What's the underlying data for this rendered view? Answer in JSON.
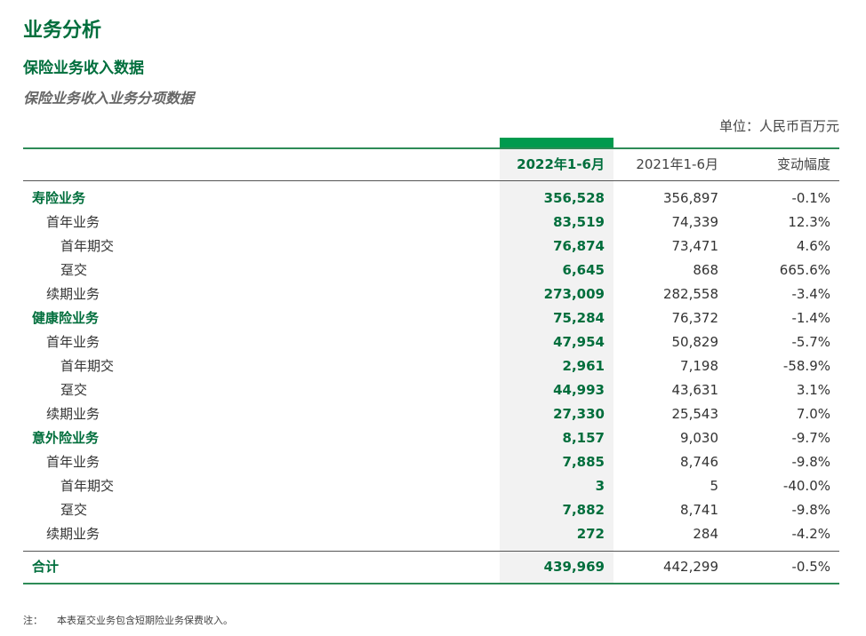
{
  "title": "业务分析",
  "subtitle": "保险业务收入数据",
  "section": "保险业务收入业务分项数据",
  "unit": "单位：人民币百万元",
  "columns": [
    "",
    "2022年1-6月",
    "2021年1-6月",
    "变动幅度"
  ],
  "rows": [
    {
      "label": "寿险业务",
      "level": 0,
      "v2022": "356,528",
      "v2021": "356,897",
      "change": "-0.1%"
    },
    {
      "label": "首年业务",
      "level": 1,
      "v2022": "83,519",
      "v2021": "74,339",
      "change": "12.3%"
    },
    {
      "label": "首年期交",
      "level": 2,
      "v2022": "76,874",
      "v2021": "73,471",
      "change": "4.6%"
    },
    {
      "label": "趸交",
      "level": 2,
      "v2022": "6,645",
      "v2021": "868",
      "change": "665.6%"
    },
    {
      "label": "续期业务",
      "level": 1,
      "v2022": "273,009",
      "v2021": "282,558",
      "change": "-3.4%"
    },
    {
      "label": "健康险业务",
      "level": 0,
      "v2022": "75,284",
      "v2021": "76,372",
      "change": "-1.4%"
    },
    {
      "label": "首年业务",
      "level": 1,
      "v2022": "47,954",
      "v2021": "50,829",
      "change": "-5.7%"
    },
    {
      "label": "首年期交",
      "level": 2,
      "v2022": "2,961",
      "v2021": "7,198",
      "change": "-58.9%"
    },
    {
      "label": "趸交",
      "level": 2,
      "v2022": "44,993",
      "v2021": "43,631",
      "change": "3.1%"
    },
    {
      "label": "续期业务",
      "level": 1,
      "v2022": "27,330",
      "v2021": "25,543",
      "change": "7.0%"
    },
    {
      "label": "意外险业务",
      "level": 0,
      "v2022": "8,157",
      "v2021": "9,030",
      "change": "-9.7%"
    },
    {
      "label": "首年业务",
      "level": 1,
      "v2022": "7,885",
      "v2021": "8,746",
      "change": "-9.8%"
    },
    {
      "label": "首年期交",
      "level": 2,
      "v2022": "3",
      "v2021": "5",
      "change": "-40.0%"
    },
    {
      "label": "趸交",
      "level": 2,
      "v2022": "7,882",
      "v2021": "8,741",
      "change": "-9.8%"
    },
    {
      "label": "续期业务",
      "level": 1,
      "v2022": "272",
      "v2021": "284",
      "change": "-4.2%"
    }
  ],
  "total": {
    "label": "合计",
    "v2022": "439,969",
    "v2021": "442,299",
    "change": "-0.5%"
  },
  "note": {
    "prefix": "注：",
    "text": "本表趸交业务包含短期险业务保费收入。"
  },
  "colors": {
    "accent": "#006e3c",
    "bar": "#009a4e",
    "highlight": "#f2f2f2"
  }
}
